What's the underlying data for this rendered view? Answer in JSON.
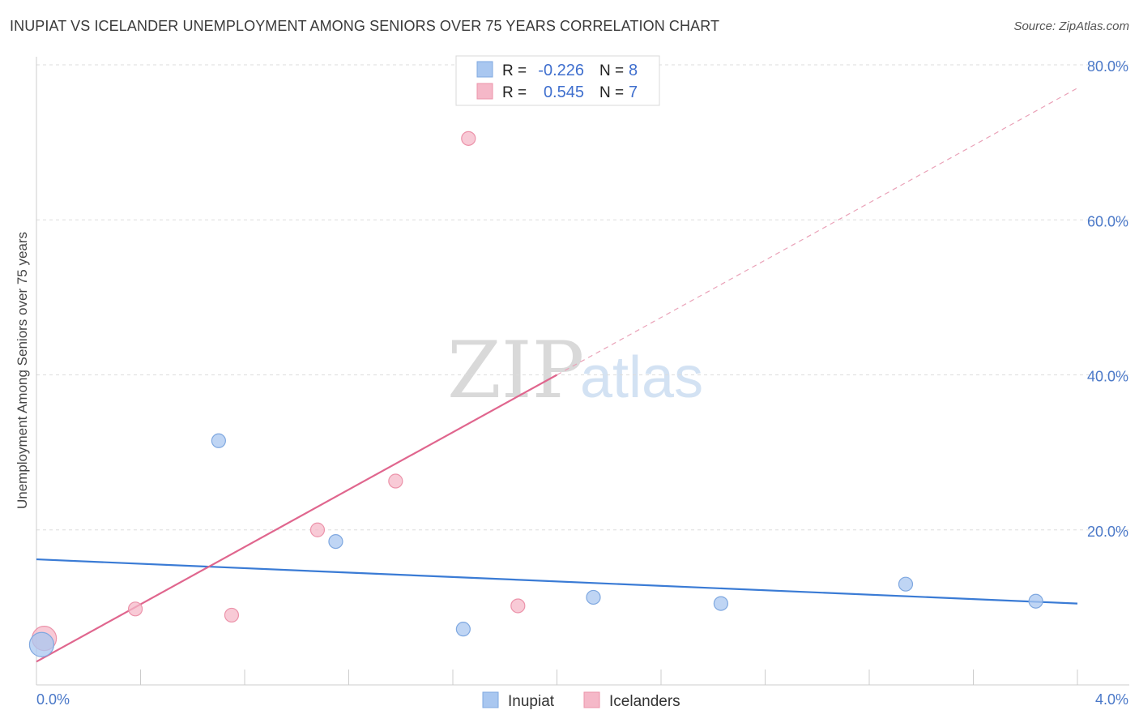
{
  "header": {
    "title": "INUPIAT VS ICELANDER UNEMPLOYMENT AMONG SENIORS OVER 75 YEARS CORRELATION CHART",
    "source": "Source: ZipAtlas.com"
  },
  "watermark": {
    "zip": "ZIP",
    "atlas": "atlas"
  },
  "legend": {
    "items": [
      {
        "r_label": "R =",
        "r_value": "-0.226",
        "n_label": "N =",
        "n_value": "8",
        "color": "#a9c7f0"
      },
      {
        "r_label": "R =",
        "r_value": "0.545",
        "n_label": "N =",
        "n_value": "7",
        "color": "#f5b8c8"
      }
    ]
  },
  "bottom_legend": {
    "inupiat": "Inupiat",
    "icelanders": "Icelanders"
  },
  "chart_data": {
    "type": "scatter",
    "title": "INUPIAT VS ICELANDER UNEMPLOYMENT AMONG SENIORS OVER 75 YEARS CORRELATION CHART",
    "ylabel": "Unemployment Among Seniors over 75 years",
    "xlabel": "",
    "xlim": [
      0,
      4
    ],
    "ylim": [
      0,
      80
    ],
    "x_tick_labels": [
      "0.0%",
      "4.0%"
    ],
    "y_tick_labels": [
      "20.0%",
      "40.0%",
      "60.0%",
      "80.0%"
    ],
    "y_ticks": [
      20,
      40,
      60,
      80
    ],
    "grid": true,
    "legend_position": "top-center",
    "series": [
      {
        "name": "Inupiat",
        "color": "#a9c7f0",
        "stroke": "#7fa8e0",
        "line_color": "#3a7bd5",
        "points": [
          {
            "x": 0.02,
            "y": 5.2,
            "big": true
          },
          {
            "x": 0.7,
            "y": 31.5
          },
          {
            "x": 1.15,
            "y": 18.5
          },
          {
            "x": 1.64,
            "y": 7.2
          },
          {
            "x": 2.14,
            "y": 11.3
          },
          {
            "x": 2.63,
            "y": 10.5
          },
          {
            "x": 3.34,
            "y": 13.0
          },
          {
            "x": 3.84,
            "y": 10.8
          }
        ],
        "trend": {
          "x0": 0,
          "y0": 16.2,
          "x1": 4,
          "y1": 10.5
        }
      },
      {
        "name": "Icelanders",
        "color": "#f5b8c8",
        "stroke": "#ec93aa",
        "line_color": "#e0668e",
        "points": [
          {
            "x": 0.03,
            "y": 6.0,
            "big": true
          },
          {
            "x": 0.38,
            "y": 9.8
          },
          {
            "x": 0.75,
            "y": 9.0
          },
          {
            "x": 1.08,
            "y": 20.0
          },
          {
            "x": 1.38,
            "y": 26.3
          },
          {
            "x": 1.66,
            "y": 70.5
          },
          {
            "x": 1.85,
            "y": 10.2
          }
        ],
        "trend": {
          "x0": 0,
          "y0": 3.0,
          "x1": 2.0,
          "y1": 40.0,
          "dash_x1": 4,
          "dash_y1": 77.0
        }
      }
    ]
  }
}
